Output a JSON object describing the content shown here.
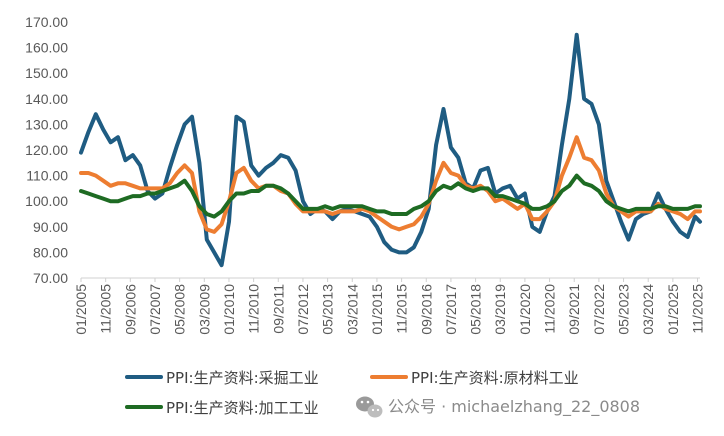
{
  "chart_data": {
    "type": "line",
    "title": "",
    "xlabel": "",
    "ylabel": "",
    "ylim": [
      70,
      170
    ],
    "yticks": [
      "170.00",
      "160.00",
      "150.00",
      "140.00",
      "130.00",
      "120.00",
      "110.00",
      "100.00",
      "90.00",
      "80.00",
      "70.00"
    ],
    "xticks": [
      "01/2005",
      "11/2005",
      "09/2006",
      "07/2007",
      "05/2008",
      "03/2009",
      "01/2010",
      "11/2010",
      "09/2011",
      "07/2012",
      "05/2013",
      "03/2014",
      "01/2015",
      "11/2015",
      "09/2016",
      "07/2017",
      "05/2018",
      "03/2019",
      "01/2020",
      "11/2020",
      "09/2021",
      "07/2022",
      "05/2023",
      "03/2024",
      "01/2025",
      "11/2025"
    ],
    "x_start": "2005-01",
    "x_end": "2025-12",
    "grid": "none",
    "legend_position": "bottom",
    "series": [
      {
        "name": "PPI:生产资料:采掘工业",
        "color": "#1f5c82",
        "points": [
          [
            "2005-01",
            119
          ],
          [
            "2005-04",
            127
          ],
          [
            "2005-07",
            134
          ],
          [
            "2005-10",
            128
          ],
          [
            "2006-01",
            123
          ],
          [
            "2006-04",
            125
          ],
          [
            "2006-07",
            116
          ],
          [
            "2006-10",
            118
          ],
          [
            "2007-01",
            114
          ],
          [
            "2007-04",
            104
          ],
          [
            "2007-07",
            101
          ],
          [
            "2007-10",
            103
          ],
          [
            "2008-01",
            113
          ],
          [
            "2008-04",
            122
          ],
          [
            "2008-07",
            130
          ],
          [
            "2008-10",
            133
          ],
          [
            "2009-01",
            115
          ],
          [
            "2009-04",
            85
          ],
          [
            "2009-07",
            80
          ],
          [
            "2009-10",
            75
          ],
          [
            "2010-01",
            92
          ],
          [
            "2010-04",
            133
          ],
          [
            "2010-07",
            131
          ],
          [
            "2010-10",
            114
          ],
          [
            "2011-01",
            110
          ],
          [
            "2011-04",
            113
          ],
          [
            "2011-07",
            115
          ],
          [
            "2011-10",
            118
          ],
          [
            "2012-01",
            117
          ],
          [
            "2012-04",
            112
          ],
          [
            "2012-07",
            100
          ],
          [
            "2012-10",
            95
          ],
          [
            "2013-01",
            97
          ],
          [
            "2013-04",
            96
          ],
          [
            "2013-07",
            93
          ],
          [
            "2013-10",
            96
          ],
          [
            "2014-01",
            97
          ],
          [
            "2014-04",
            96
          ],
          [
            "2014-07",
            95
          ],
          [
            "2014-10",
            94
          ],
          [
            "2015-01",
            90
          ],
          [
            "2015-04",
            84
          ],
          [
            "2015-07",
            81
          ],
          [
            "2015-10",
            80
          ],
          [
            "2016-01",
            80
          ],
          [
            "2016-04",
            82
          ],
          [
            "2016-07",
            88
          ],
          [
            "2016-10",
            97
          ],
          [
            "2017-01",
            122
          ],
          [
            "2017-04",
            136
          ],
          [
            "2017-07",
            121
          ],
          [
            "2017-10",
            117
          ],
          [
            "2018-01",
            107
          ],
          [
            "2018-04",
            105
          ],
          [
            "2018-07",
            112
          ],
          [
            "2018-10",
            113
          ],
          [
            "2019-01",
            103
          ],
          [
            "2019-04",
            105
          ],
          [
            "2019-07",
            106
          ],
          [
            "2019-10",
            101
          ],
          [
            "2020-01",
            103
          ],
          [
            "2020-04",
            90
          ],
          [
            "2020-07",
            88
          ],
          [
            "2020-10",
            96
          ],
          [
            "2021-01",
            102
          ],
          [
            "2021-04",
            122
          ],
          [
            "2021-07",
            140
          ],
          [
            "2021-10",
            165
          ],
          [
            "2022-01",
            140
          ],
          [
            "2022-04",
            138
          ],
          [
            "2022-07",
            130
          ],
          [
            "2022-10",
            108
          ],
          [
            "2023-01",
            100
          ],
          [
            "2023-04",
            92
          ],
          [
            "2023-07",
            85
          ],
          [
            "2023-10",
            93
          ],
          [
            "2024-01",
            95
          ],
          [
            "2024-04",
            96
          ],
          [
            "2024-07",
            103
          ],
          [
            "2024-10",
            97
          ],
          [
            "2025-01",
            92
          ],
          [
            "2025-04",
            88
          ],
          [
            "2025-07",
            86
          ],
          [
            "2025-10",
            94
          ],
          [
            "2025-12",
            92
          ]
        ]
      },
      {
        "name": "PPI:生产资料:原材料工业",
        "color": "#ed7d31",
        "points": [
          [
            "2005-01",
            111
          ],
          [
            "2005-04",
            111
          ],
          [
            "2005-07",
            110
          ],
          [
            "2005-10",
            108
          ],
          [
            "2006-01",
            106
          ],
          [
            "2006-04",
            107
          ],
          [
            "2006-07",
            107
          ],
          [
            "2006-10",
            106
          ],
          [
            "2007-01",
            105
          ],
          [
            "2007-04",
            105
          ],
          [
            "2007-07",
            105
          ],
          [
            "2007-10",
            105
          ],
          [
            "2008-01",
            107
          ],
          [
            "2008-04",
            111
          ],
          [
            "2008-07",
            114
          ],
          [
            "2008-10",
            111
          ],
          [
            "2009-01",
            96
          ],
          [
            "2009-04",
            89
          ],
          [
            "2009-07",
            88
          ],
          [
            "2009-10",
            91
          ],
          [
            "2010-01",
            100
          ],
          [
            "2010-04",
            111
          ],
          [
            "2010-07",
            113
          ],
          [
            "2010-10",
            108
          ],
          [
            "2011-01",
            105
          ],
          [
            "2011-04",
            106
          ],
          [
            "2011-07",
            106
          ],
          [
            "2011-10",
            104
          ],
          [
            "2012-01",
            103
          ],
          [
            "2012-04",
            99
          ],
          [
            "2012-07",
            96
          ],
          [
            "2012-10",
            96
          ],
          [
            "2013-01",
            96
          ],
          [
            "2013-04",
            96
          ],
          [
            "2013-07",
            95
          ],
          [
            "2013-10",
            96
          ],
          [
            "2014-01",
            96
          ],
          [
            "2014-04",
            96
          ],
          [
            "2014-07",
            97
          ],
          [
            "2014-10",
            96
          ],
          [
            "2015-01",
            94
          ],
          [
            "2015-04",
            92
          ],
          [
            "2015-07",
            90
          ],
          [
            "2015-10",
            89
          ],
          [
            "2016-01",
            90
          ],
          [
            "2016-04",
            91
          ],
          [
            "2016-07",
            94
          ],
          [
            "2016-10",
            99
          ],
          [
            "2017-01",
            108
          ],
          [
            "2017-04",
            115
          ],
          [
            "2017-07",
            111
          ],
          [
            "2017-10",
            110
          ],
          [
            "2018-01",
            106
          ],
          [
            "2018-04",
            105
          ],
          [
            "2018-07",
            106
          ],
          [
            "2018-10",
            104
          ],
          [
            "2019-01",
            100
          ],
          [
            "2019-04",
            101
          ],
          [
            "2019-07",
            99
          ],
          [
            "2019-10",
            97
          ],
          [
            "2020-01",
            99
          ],
          [
            "2020-04",
            93
          ],
          [
            "2020-07",
            93
          ],
          [
            "2020-10",
            96
          ],
          [
            "2021-01",
            100
          ],
          [
            "2021-04",
            110
          ],
          [
            "2021-07",
            117
          ],
          [
            "2021-10",
            125
          ],
          [
            "2022-01",
            117
          ],
          [
            "2022-04",
            116
          ],
          [
            "2022-07",
            112
          ],
          [
            "2022-10",
            103
          ],
          [
            "2023-01",
            98
          ],
          [
            "2023-04",
            96
          ],
          [
            "2023-07",
            94
          ],
          [
            "2023-10",
            96
          ],
          [
            "2024-01",
            96
          ],
          [
            "2024-04",
            96
          ],
          [
            "2024-07",
            99
          ],
          [
            "2024-10",
            97
          ],
          [
            "2025-01",
            96
          ],
          [
            "2025-04",
            95
          ],
          [
            "2025-07",
            93
          ],
          [
            "2025-10",
            96
          ],
          [
            "2025-12",
            96
          ]
        ]
      },
      {
        "name": "PPI:生产资料:加工工业",
        "color": "#1e6b23",
        "points": [
          [
            "2005-01",
            104
          ],
          [
            "2005-04",
            103
          ],
          [
            "2005-07",
            102
          ],
          [
            "2005-10",
            101
          ],
          [
            "2006-01",
            100
          ],
          [
            "2006-04",
            100
          ],
          [
            "2006-07",
            101
          ],
          [
            "2006-10",
            102
          ],
          [
            "2007-01",
            102
          ],
          [
            "2007-04",
            103
          ],
          [
            "2007-07",
            103
          ],
          [
            "2007-10",
            104
          ],
          [
            "2008-01",
            105
          ],
          [
            "2008-04",
            106
          ],
          [
            "2008-07",
            108
          ],
          [
            "2008-10",
            104
          ],
          [
            "2009-01",
            98
          ],
          [
            "2009-04",
            95
          ],
          [
            "2009-07",
            94
          ],
          [
            "2009-10",
            96
          ],
          [
            "2010-01",
            100
          ],
          [
            "2010-04",
            103
          ],
          [
            "2010-07",
            103
          ],
          [
            "2010-10",
            104
          ],
          [
            "2011-01",
            104
          ],
          [
            "2011-04",
            106
          ],
          [
            "2011-07",
            106
          ],
          [
            "2011-10",
            105
          ],
          [
            "2012-01",
            103
          ],
          [
            "2012-04",
            100
          ],
          [
            "2012-07",
            97
          ],
          [
            "2012-10",
            97
          ],
          [
            "2013-01",
            97
          ],
          [
            "2013-04",
            98
          ],
          [
            "2013-07",
            97
          ],
          [
            "2013-10",
            98
          ],
          [
            "2014-01",
            98
          ],
          [
            "2014-04",
            98
          ],
          [
            "2014-07",
            98
          ],
          [
            "2014-10",
            97
          ],
          [
            "2015-01",
            96
          ],
          [
            "2015-04",
            96
          ],
          [
            "2015-07",
            95
          ],
          [
            "2015-10",
            95
          ],
          [
            "2016-01",
            95
          ],
          [
            "2016-04",
            97
          ],
          [
            "2016-07",
            98
          ],
          [
            "2016-10",
            100
          ],
          [
            "2017-01",
            104
          ],
          [
            "2017-04",
            106
          ],
          [
            "2017-07",
            105
          ],
          [
            "2017-10",
            107
          ],
          [
            "2018-01",
            105
          ],
          [
            "2018-04",
            104
          ],
          [
            "2018-07",
            105
          ],
          [
            "2018-10",
            105
          ],
          [
            "2019-01",
            102
          ],
          [
            "2019-04",
            102
          ],
          [
            "2019-07",
            101
          ],
          [
            "2019-10",
            100
          ],
          [
            "2020-01",
            99
          ],
          [
            "2020-04",
            97
          ],
          [
            "2020-07",
            97
          ],
          [
            "2020-10",
            98
          ],
          [
            "2021-01",
            100
          ],
          [
            "2021-04",
            104
          ],
          [
            "2021-07",
            106
          ],
          [
            "2021-10",
            110
          ],
          [
            "2022-01",
            107
          ],
          [
            "2022-04",
            106
          ],
          [
            "2022-07",
            104
          ],
          [
            "2022-10",
            100
          ],
          [
            "2023-01",
            98
          ],
          [
            "2023-04",
            97
          ],
          [
            "2023-07",
            96
          ],
          [
            "2023-10",
            97
          ],
          [
            "2024-01",
            97
          ],
          [
            "2024-04",
            97
          ],
          [
            "2024-07",
            98
          ],
          [
            "2024-10",
            98
          ],
          [
            "2025-01",
            97
          ],
          [
            "2025-04",
            97
          ],
          [
            "2025-07",
            97
          ],
          [
            "2025-10",
            98
          ],
          [
            "2025-12",
            98
          ]
        ]
      }
    ]
  },
  "watermark": {
    "icon": "wechat-icon",
    "text": "公众号 · michaelzhang_22_0808"
  }
}
